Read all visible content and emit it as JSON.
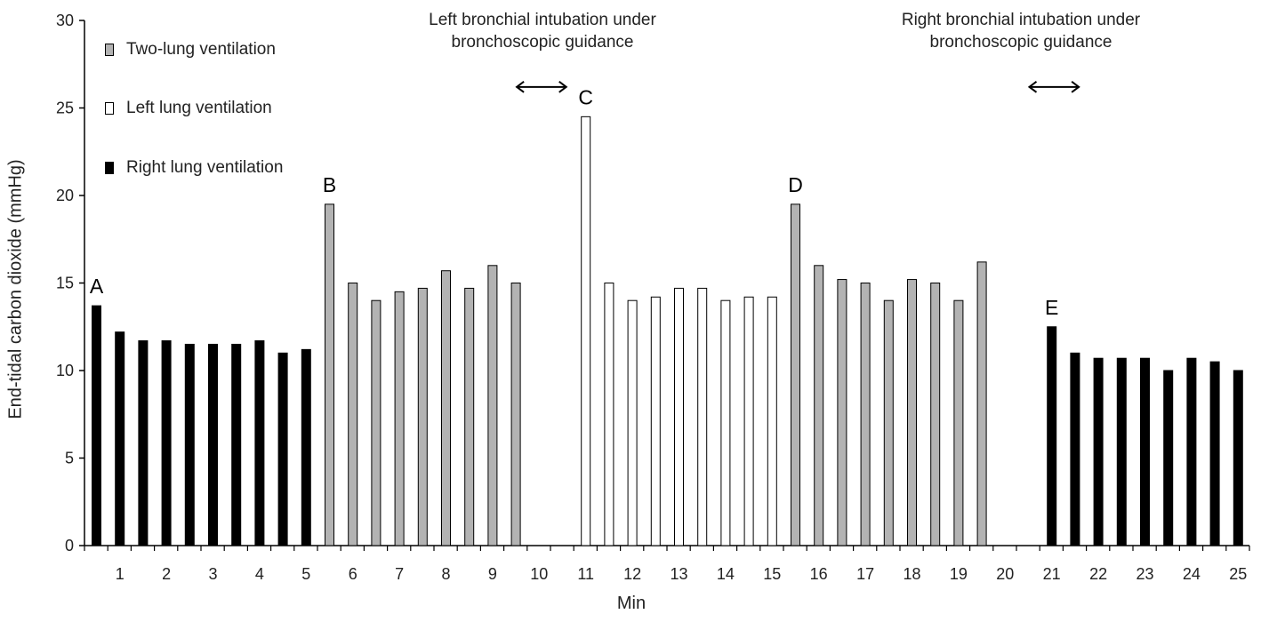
{
  "chart_data": {
    "type": "bar",
    "xlabel": "Min",
    "ylabel": "End-tidal carbon dioxide (mmHg)",
    "ylim": [
      0,
      30
    ],
    "yticks": [
      "0",
      "5",
      "10",
      "15",
      "20",
      "25",
      "30"
    ],
    "xticks": [
      "1",
      "2",
      "3",
      "4",
      "5",
      "6",
      "7",
      "8",
      "9",
      "10",
      "11",
      "12",
      "13",
      "14",
      "15",
      "16",
      "17",
      "18",
      "19",
      "20",
      "21",
      "22",
      "23",
      "24",
      "25"
    ],
    "grid": false,
    "legend_position": "top-left",
    "legend": [
      {
        "label": "Two-lung ventilation",
        "color": "#b3b3b3"
      },
      {
        "label": "Left lung ventilation",
        "color": "#ffffff"
      },
      {
        "label": "Right lung ventilation",
        "color": "#000000"
      }
    ],
    "bars": [
      {
        "t": 0.5,
        "value": 13.7,
        "series": "right"
      },
      {
        "t": 1.0,
        "value": 12.2,
        "series": "right"
      },
      {
        "t": 1.5,
        "value": 11.7,
        "series": "right"
      },
      {
        "t": 2.0,
        "value": 11.7,
        "series": "right"
      },
      {
        "t": 2.5,
        "value": 11.5,
        "series": "right"
      },
      {
        "t": 3.0,
        "value": 11.5,
        "series": "right"
      },
      {
        "t": 3.5,
        "value": 11.5,
        "series": "right"
      },
      {
        "t": 4.0,
        "value": 11.7,
        "series": "right"
      },
      {
        "t": 4.5,
        "value": 11.0,
        "series": "right"
      },
      {
        "t": 5.0,
        "value": 11.2,
        "series": "right"
      },
      {
        "t": 5.5,
        "value": 19.5,
        "series": "two"
      },
      {
        "t": 6.0,
        "value": 15.0,
        "series": "two"
      },
      {
        "t": 6.5,
        "value": 14.0,
        "series": "two"
      },
      {
        "t": 7.0,
        "value": 14.5,
        "series": "two"
      },
      {
        "t": 7.5,
        "value": 14.7,
        "series": "two"
      },
      {
        "t": 8.0,
        "value": 15.7,
        "series": "two"
      },
      {
        "t": 8.5,
        "value": 14.7,
        "series": "two"
      },
      {
        "t": 9.0,
        "value": 16.0,
        "series": "two"
      },
      {
        "t": 9.5,
        "value": 15.0,
        "series": "two"
      },
      {
        "t": 11.0,
        "value": 24.5,
        "series": "left"
      },
      {
        "t": 11.5,
        "value": 15.0,
        "series": "left"
      },
      {
        "t": 12.0,
        "value": 14.0,
        "series": "left"
      },
      {
        "t": 12.5,
        "value": 14.2,
        "series": "left"
      },
      {
        "t": 13.0,
        "value": 14.7,
        "series": "left"
      },
      {
        "t": 13.5,
        "value": 14.7,
        "series": "left"
      },
      {
        "t": 14.0,
        "value": 14.0,
        "series": "left"
      },
      {
        "t": 14.5,
        "value": 14.2,
        "series": "left"
      },
      {
        "t": 15.0,
        "value": 14.2,
        "series": "left"
      },
      {
        "t": 15.5,
        "value": 19.5,
        "series": "two"
      },
      {
        "t": 16.0,
        "value": 16.0,
        "series": "two"
      },
      {
        "t": 16.5,
        "value": 15.2,
        "series": "two"
      },
      {
        "t": 17.0,
        "value": 15.0,
        "series": "two"
      },
      {
        "t": 17.5,
        "value": 14.0,
        "series": "two"
      },
      {
        "t": 18.0,
        "value": 15.2,
        "series": "two"
      },
      {
        "t": 18.5,
        "value": 15.0,
        "series": "two"
      },
      {
        "t": 19.0,
        "value": 14.0,
        "series": "two"
      },
      {
        "t": 19.5,
        "value": 16.2,
        "series": "two"
      },
      {
        "t": 21.0,
        "value": 12.5,
        "series": "right"
      },
      {
        "t": 21.5,
        "value": 11.0,
        "series": "right"
      },
      {
        "t": 22.0,
        "value": 10.7,
        "series": "right"
      },
      {
        "t": 22.5,
        "value": 10.7,
        "series": "right"
      },
      {
        "t": 23.0,
        "value": 10.7,
        "series": "right"
      },
      {
        "t": 23.5,
        "value": 10.0,
        "series": "right"
      },
      {
        "t": 24.0,
        "value": 10.7,
        "series": "right"
      },
      {
        "t": 24.5,
        "value": 10.5,
        "series": "right"
      },
      {
        "t": 25.0,
        "value": 10.0,
        "series": "right"
      }
    ],
    "series_colors": {
      "two": "#b3b3b3",
      "left": "#ffffff",
      "right": "#000000"
    },
    "point_labels": [
      {
        "text": "A",
        "t": 0.5,
        "value": 13.7
      },
      {
        "text": "B",
        "t": 5.5,
        "value": 19.5
      },
      {
        "text": "C",
        "t": 11.0,
        "value": 24.5
      },
      {
        "text": "D",
        "t": 15.5,
        "value": 19.5
      },
      {
        "text": "E",
        "t": 21.0,
        "value": 12.5
      }
    ],
    "annotations": [
      {
        "text": "Left bronchial intubation under bronchoscopic guidance",
        "line1": "Left bronchial intubation under",
        "line2": "bronchoscopic guidance",
        "arrow_from": 9.5,
        "arrow_to": 10.6,
        "arrow_y": 26.2
      },
      {
        "text": "Right bronchial intubation under bronchoscopic guidance",
        "line1": "Right bronchial intubation under",
        "line2": "bronchoscopic guidance",
        "arrow_from": 20.5,
        "arrow_to": 21.6,
        "arrow_y": 26.2
      }
    ]
  }
}
